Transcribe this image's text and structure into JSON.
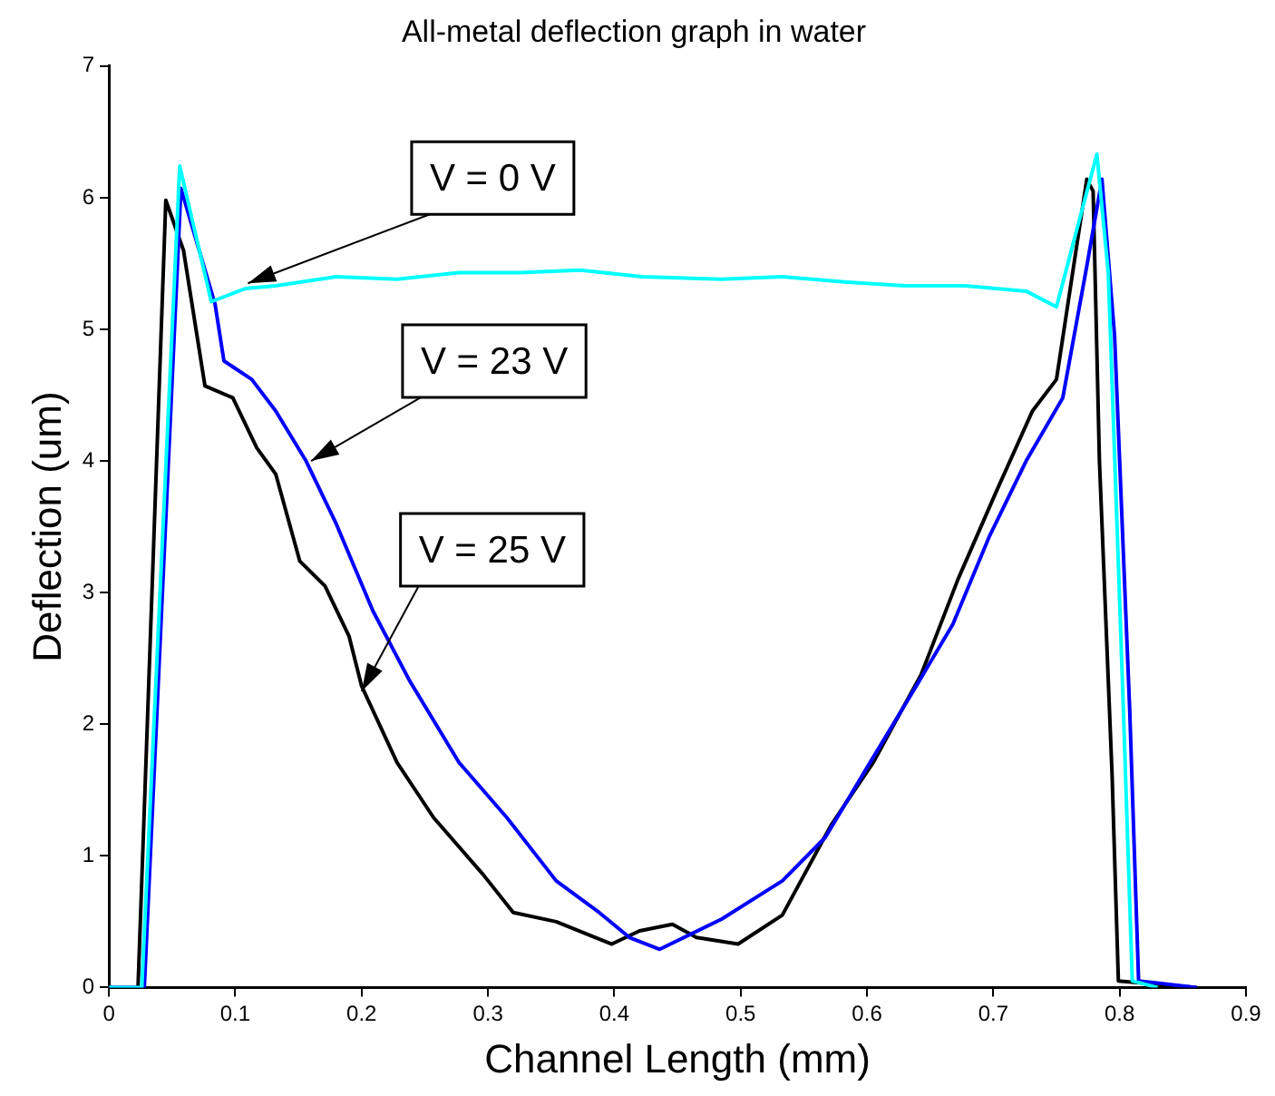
{
  "chart_data": {
    "type": "line",
    "title": "All-metal deflection graph in water",
    "xlabel": "Channel Length (mm)",
    "ylabel": "Deflection (um)",
    "xlim": [
      0,
      0.9
    ],
    "ylim": [
      0,
      7
    ],
    "xticks": [
      0,
      0.1,
      0.2,
      0.3,
      0.4,
      0.5,
      0.6,
      0.7,
      0.8,
      0.9
    ],
    "yticks": [
      0,
      1,
      2,
      3,
      4,
      5,
      6,
      7
    ],
    "grid": false,
    "legend": false,
    "marker": "none",
    "line_style": "solid",
    "series": [
      {
        "color": "#00ffff",
        "x": [
          0,
          0.026,
          0.056,
          0.081,
          0.108,
          0.132,
          0.18,
          0.228,
          0.277,
          0.325,
          0.373,
          0.422,
          0.485,
          0.533,
          0.582,
          0.63,
          0.678,
          0.726,
          0.75,
          0.77,
          0.782,
          0.791,
          0.803,
          0.81,
          0.83
        ],
        "values": [
          0,
          0,
          6.24,
          5.21,
          5.31,
          5.33,
          5.4,
          5.38,
          5.43,
          5.43,
          5.45,
          5.4,
          5.38,
          5.4,
          5.36,
          5.33,
          5.33,
          5.29,
          5.17,
          5.9,
          6.33,
          5.43,
          2.1,
          0.05,
          0
        ]
      },
      {
        "color": "#0000ff",
        "x": [
          0,
          0.028,
          0.057,
          0.084,
          0.091,
          0.113,
          0.132,
          0.156,
          0.18,
          0.209,
          0.238,
          0.277,
          0.315,
          0.354,
          0.388,
          0.412,
          0.436,
          0.485,
          0.533,
          0.567,
          0.6,
          0.639,
          0.668,
          0.697,
          0.726,
          0.755,
          0.774,
          0.786,
          0.796,
          0.808,
          0.815,
          0.861
        ],
        "values": [
          0,
          0,
          6.07,
          5.19,
          4.76,
          4.62,
          4.38,
          4.0,
          3.52,
          2.86,
          2.33,
          1.71,
          1.29,
          0.81,
          0.57,
          0.38,
          0.29,
          0.52,
          0.81,
          1.14,
          1.67,
          2.29,
          2.76,
          3.43,
          4.0,
          4.48,
          5.48,
          6.14,
          4.95,
          2.1,
          0.05,
          0
        ]
      },
      {
        "color": "#000000",
        "x": [
          0,
          0.023,
          0.045,
          0.059,
          0.076,
          0.098,
          0.117,
          0.132,
          0.151,
          0.171,
          0.19,
          0.2,
          0.228,
          0.257,
          0.296,
          0.32,
          0.354,
          0.398,
          0.42,
          0.446,
          0.465,
          0.498,
          0.533,
          0.572,
          0.605,
          0.643,
          0.672,
          0.702,
          0.731,
          0.75,
          0.774,
          0.779,
          0.784,
          0.794,
          0.799,
          0.861
        ],
        "values": [
          0,
          0,
          5.98,
          5.6,
          4.57,
          4.48,
          4.1,
          3.9,
          3.24,
          3.05,
          2.67,
          2.29,
          1.71,
          1.29,
          0.86,
          0.57,
          0.5,
          0.33,
          0.43,
          0.48,
          0.38,
          0.33,
          0.55,
          1.24,
          1.71,
          2.38,
          3.1,
          3.76,
          4.38,
          4.62,
          6.14,
          6.05,
          4.0,
          1.62,
          0.05,
          0
        ]
      }
    ],
    "annotations": [
      {
        "text": "V = 0 V",
        "x": 0.11,
        "y": 5.35
      },
      {
        "text": "V = 23 V",
        "x": 0.16,
        "y": 4.0
      },
      {
        "text": "V = 25 V",
        "x": 0.2,
        "y": 2.25
      }
    ]
  }
}
